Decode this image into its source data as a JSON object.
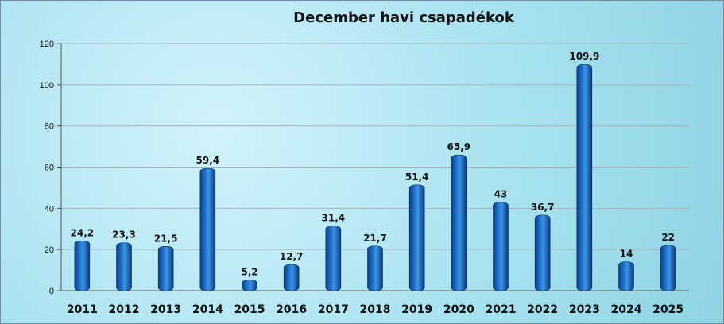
{
  "chart_data": {
    "type": "bar",
    "title": "December havi csapadékok",
    "categories": [
      "2011",
      "2012",
      "2013",
      "2014",
      "2015",
      "2016",
      "2017",
      "2018",
      "2019",
      "2020",
      "2021",
      "2022",
      "2023",
      "2024",
      "2025"
    ],
    "values": [
      24.2,
      23.3,
      21.5,
      59.4,
      5.2,
      12.7,
      31.4,
      21.7,
      51.4,
      65.9,
      43,
      36.7,
      109.9,
      14,
      22
    ],
    "data_labels": [
      "24,2",
      "23,3",
      "21,5",
      "59,4",
      "5,2",
      "12,7",
      "31,4",
      "21,7",
      "51,4",
      "65,9",
      "43",
      "36,7",
      "109,9",
      "14",
      "22"
    ],
    "y_ticks": [
      "0",
      "20",
      "40",
      "60",
      "80",
      "100",
      "120"
    ],
    "ylim": [
      0,
      120
    ],
    "xlabel": "",
    "ylabel": "",
    "grid": true,
    "legend": "none",
    "bar_color": "#1565c0",
    "background_color": "#a8e2ef"
  }
}
